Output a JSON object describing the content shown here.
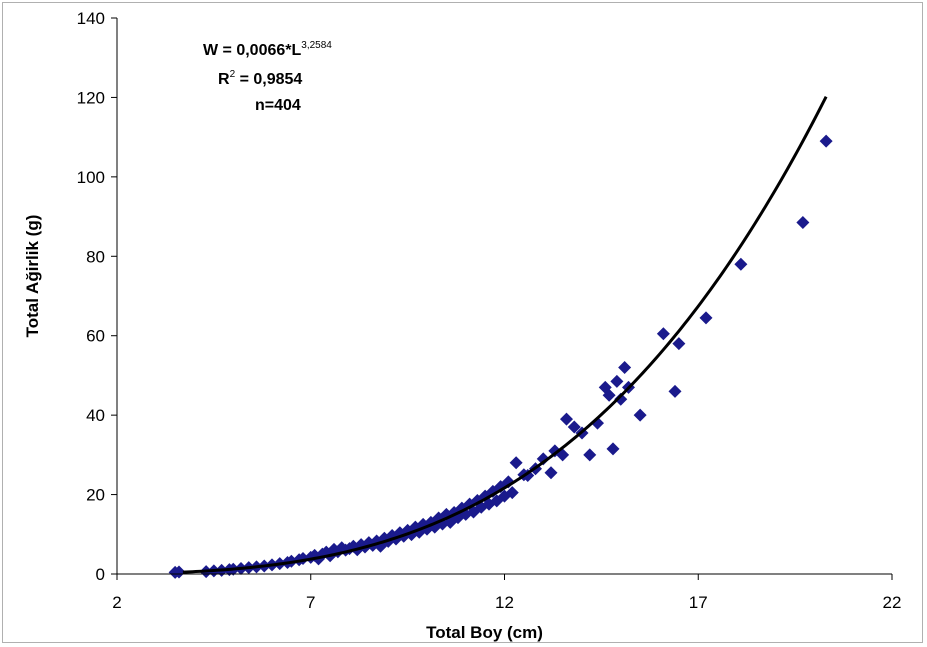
{
  "chart_data": {
    "type": "scatter",
    "xlabel": "Total Boy (cm)",
    "ylabel": "Total Ağirlik (g)",
    "xlim": [
      2,
      22
    ],
    "ylim": [
      0,
      140
    ],
    "xticks": [
      "2",
      "7",
      "12",
      "17",
      "22"
    ],
    "yticks": [
      "0",
      "20",
      "40",
      "60",
      "80",
      "100",
      "120",
      "140"
    ],
    "grid": false,
    "legend": "none",
    "marker_color": "#1a1a8c",
    "curve_color": "#000000",
    "annotation": {
      "eq_prefix": "W = 0,0066*L",
      "eq_exponent": "3,2584",
      "r2_prefix": "R",
      "r2_sup": "2",
      "r2_value": " = 0,9854",
      "n": "n=404"
    },
    "fit": {
      "a": 0.0066,
      "b": 3.2584,
      "x_min": 3.7,
      "x_max": 20.3
    },
    "series": [
      {
        "values": [
          [
            3.5,
            0.4
          ],
          [
            3.6,
            0.5
          ],
          [
            4.3,
            0.6
          ],
          [
            4.5,
            0.8
          ],
          [
            4.7,
            0.9
          ],
          [
            4.9,
            1.1
          ],
          [
            5.0,
            1.2
          ],
          [
            5.2,
            1.4
          ],
          [
            5.4,
            1.6
          ],
          [
            5.6,
            1.8
          ],
          [
            5.8,
            2.0
          ],
          [
            6.0,
            2.3
          ],
          [
            6.2,
            2.6
          ],
          [
            6.4,
            2.9
          ],
          [
            6.5,
            3.2
          ],
          [
            6.7,
            3.6
          ],
          [
            6.8,
            3.9
          ],
          [
            7.0,
            4.2
          ],
          [
            7.1,
            4.7
          ],
          [
            7.2,
            3.8
          ],
          [
            7.3,
            5.0
          ],
          [
            7.4,
            5.5
          ],
          [
            7.5,
            4.6
          ],
          [
            7.6,
            6.2
          ],
          [
            7.7,
            5.6
          ],
          [
            7.8,
            6.6
          ],
          [
            7.9,
            6.0
          ],
          [
            8.0,
            6.4
          ],
          [
            8.1,
            7.0
          ],
          [
            8.2,
            6.1
          ],
          [
            8.3,
            7.4
          ],
          [
            8.4,
            6.8
          ],
          [
            8.5,
            7.9
          ],
          [
            8.6,
            7.2
          ],
          [
            8.7,
            8.3
          ],
          [
            8.8,
            7.0
          ],
          [
            8.9,
            9.0
          ],
          [
            9.0,
            8.2
          ],
          [
            9.1,
            9.7
          ],
          [
            9.2,
            8.8
          ],
          [
            9.3,
            10.4
          ],
          [
            9.4,
            9.5
          ],
          [
            9.5,
            11.0
          ],
          [
            9.6,
            9.9
          ],
          [
            9.7,
            11.8
          ],
          [
            9.8,
            10.5
          ],
          [
            9.9,
            12.5
          ],
          [
            10.0,
            11.3
          ],
          [
            10.1,
            13.0
          ],
          [
            10.2,
            11.8
          ],
          [
            10.3,
            14.1
          ],
          [
            10.4,
            12.6
          ],
          [
            10.5,
            15.0
          ],
          [
            10.6,
            13.0
          ],
          [
            10.7,
            15.5
          ],
          [
            10.8,
            14.2
          ],
          [
            10.9,
            16.6
          ],
          [
            11.0,
            15.0
          ],
          [
            11.1,
            17.6
          ],
          [
            11.2,
            15.6
          ],
          [
            11.3,
            18.5
          ],
          [
            11.4,
            16.8
          ],
          [
            11.5,
            19.6
          ],
          [
            11.6,
            17.6
          ],
          [
            11.7,
            20.8
          ],
          [
            11.8,
            18.4
          ],
          [
            11.9,
            22.0
          ],
          [
            12.0,
            19.6
          ],
          [
            12.1,
            23.2
          ],
          [
            12.2,
            20.5
          ],
          [
            12.3,
            28.0
          ],
          [
            12.5,
            25.0
          ],
          [
            12.6,
            24.8
          ],
          [
            12.8,
            26.5
          ],
          [
            13.0,
            29.0
          ],
          [
            13.2,
            25.5
          ],
          [
            13.3,
            31.0
          ],
          [
            13.5,
            30.0
          ],
          [
            13.6,
            39.0
          ],
          [
            13.8,
            37.0
          ],
          [
            14.0,
            35.5
          ],
          [
            14.2,
            30.0
          ],
          [
            14.4,
            38.0
          ],
          [
            14.6,
            47.0
          ],
          [
            14.7,
            45.0
          ],
          [
            14.8,
            31.5
          ],
          [
            14.9,
            48.5
          ],
          [
            15.0,
            44.0
          ],
          [
            15.1,
            52.0
          ],
          [
            15.2,
            47.0
          ],
          [
            15.5,
            40.0
          ],
          [
            16.1,
            60.5
          ],
          [
            16.4,
            46.0
          ],
          [
            16.5,
            58.0
          ],
          [
            17.2,
            64.5
          ],
          [
            18.1,
            78.0
          ],
          [
            19.7,
            88.5
          ],
          [
            20.3,
            109.0
          ]
        ]
      }
    ]
  }
}
